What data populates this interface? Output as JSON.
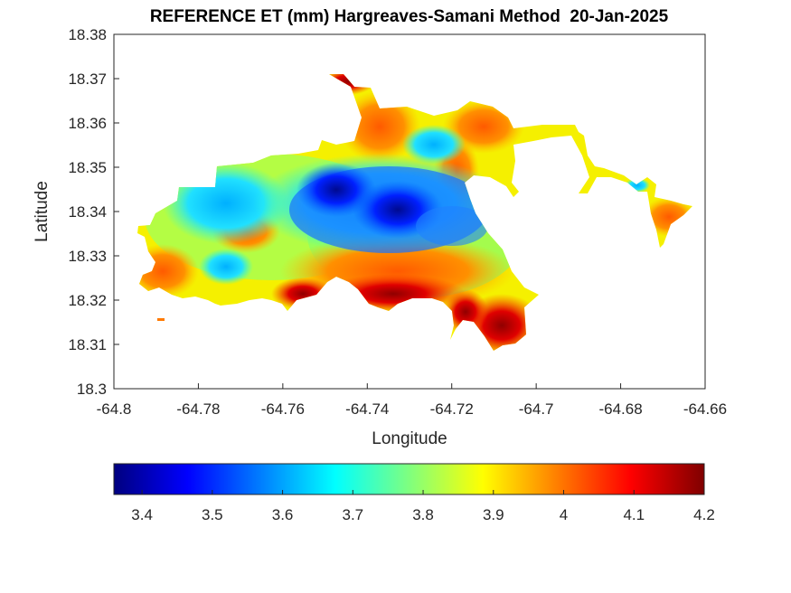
{
  "figure": {
    "title": "REFERENCE ET (mm) Hargreaves-Samani Method  20-Jan-2025",
    "xlabel": "Longitude",
    "ylabel": "Latitude"
  },
  "map": {
    "xlim": [
      -64.8,
      -64.66
    ],
    "ylim": [
      18.3,
      18.38
    ],
    "x_ticks": [
      "-64.8",
      "-64.78",
      "-64.76",
      "-64.74",
      "-64.72",
      "-64.7",
      "-64.68",
      "-64.66"
    ],
    "y_ticks": [
      "18.3",
      "18.31",
      "18.32",
      "18.33",
      "18.34",
      "18.35",
      "18.36",
      "18.37",
      "18.38"
    ],
    "colormap": "jet",
    "grid": false
  },
  "colorbar": {
    "orientation": "horizontal",
    "location": "south",
    "range": [
      3.36,
      4.2
    ],
    "ticks": [
      "3.4",
      "3.5",
      "3.6",
      "3.7",
      "3.8",
      "3.9",
      "4",
      "4.1",
      "4.2"
    ],
    "colors": [
      "#00007f",
      "#0000ff",
      "#007fff",
      "#00ffff",
      "#7fff7f",
      "#ffff00",
      "#ff7f00",
      "#ff0000",
      "#7f0000"
    ]
  }
}
